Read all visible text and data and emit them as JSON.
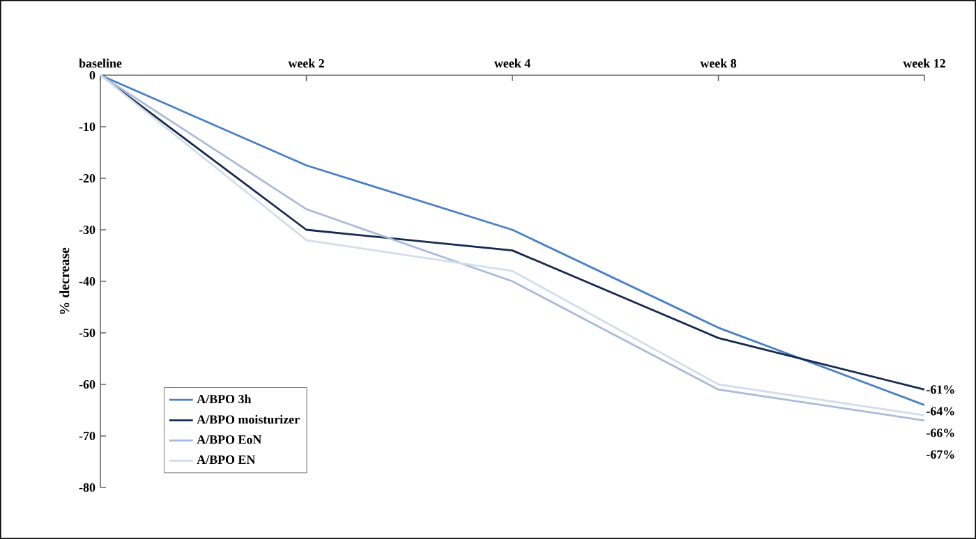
{
  "chart_data": {
    "type": "line",
    "ylabel": "% decrease",
    "categories": [
      "baseline",
      "week 2",
      "week 4",
      "week 8",
      "week 12"
    ],
    "series": [
      {
        "name": "A/BPO 3h",
        "color": "#4a80c4",
        "values": [
          0,
          -17.5,
          -30,
          -49,
          -64
        ],
        "value_labels": [
          null,
          null,
          null,
          null,
          "-64%"
        ]
      },
      {
        "name": "A/BPO moisturizer",
        "color": "#14294d",
        "values": [
          0,
          -30,
          -34,
          -51,
          -61
        ],
        "value_labels": [
          null,
          null,
          null,
          null,
          "-61%"
        ]
      },
      {
        "name": "A/BPO EoN",
        "color": "#a9bbd9",
        "values": [
          0,
          -26,
          -40,
          -61,
          -67
        ],
        "value_labels": [
          null,
          null,
          null,
          null,
          "-67%"
        ]
      },
      {
        "name": "A/BPO EN",
        "color": "#d3ddeb",
        "values": [
          0,
          -32,
          -38,
          -60,
          -66
        ],
        "value_labels": [
          null,
          null,
          null,
          null,
          "-66%"
        ]
      }
    ],
    "ylim": [
      -80,
      0
    ],
    "yticks": [
      -80,
      -70,
      -60,
      -50,
      -40,
      -30,
      -20,
      -10,
      0
    ],
    "legend": "bottom left",
    "grid": false,
    "marker": "none",
    "line_style": "solid"
  }
}
